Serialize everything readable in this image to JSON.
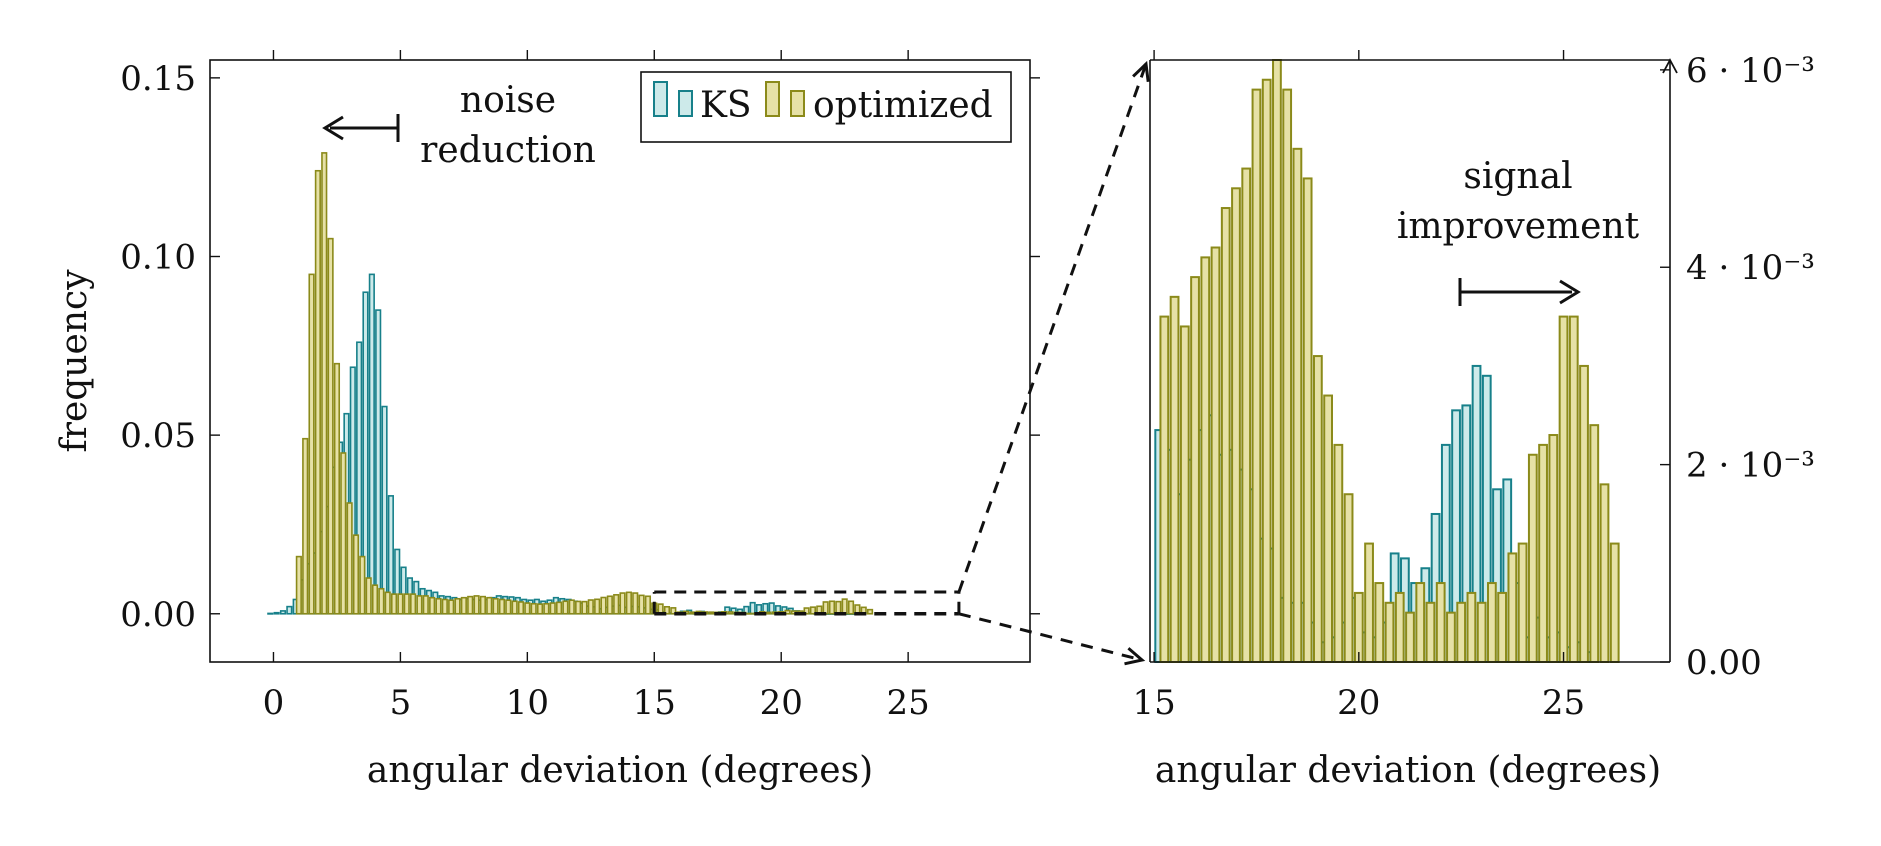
{
  "colors": {
    "ks_fill": "#cdeaea",
    "ks_stroke": "#17808a",
    "opt_fill": "#e6e1a6",
    "opt_stroke": "#8b8a1a",
    "axis": "#111111"
  },
  "legend": [
    {
      "label": "KS",
      "series": "KS"
    },
    {
      "label": "optimized",
      "series": "optimized"
    }
  ],
  "annotations": {
    "noise_line1": "noise",
    "noise_line2": "reduction",
    "signal_line1": "signal",
    "signal_line2": "improvement"
  },
  "chart_data": [
    {
      "type": "bar",
      "panel": "main",
      "xlabel": "angular deviation (degrees)",
      "ylabel": "frequency",
      "xlim": [
        -2.5,
        29.8
      ],
      "ylim": [
        -0.0135,
        0.155
      ],
      "xticks": [
        0,
        5,
        10,
        15,
        20,
        25
      ],
      "xtick_labels": [
        "0",
        "5",
        "10",
        "15",
        "20",
        "25"
      ],
      "yticks": [
        0.0,
        0.05,
        0.1,
        0.15
      ],
      "ytick_labels": [
        "0.00",
        "0.05",
        "0.10",
        "0.15"
      ],
      "legend_position": "top-right",
      "bin_width": 0.25,
      "series": [
        {
          "name": "KS",
          "x_start": -0.25,
          "values": [
            0.0001,
            0.0003,
            0.0008,
            0.002,
            0.004,
            0.0095,
            0.014,
            0.017,
            0.023,
            0.03,
            0.041,
            0.048,
            0.056,
            0.069,
            0.076,
            0.09,
            0.095,
            0.085,
            0.058,
            0.033,
            0.018,
            0.013,
            0.01,
            0.009,
            0.007,
            0.0065,
            0.006,
            0.005,
            0.0048,
            0.0045,
            0.004,
            0.0042,
            0.004,
            0.0038,
            0.004,
            0.0045,
            0.005,
            0.0048,
            0.0047,
            0.0045,
            0.004,
            0.0038,
            0.004,
            0.0035,
            0.0038,
            0.0045,
            0.0042,
            0.004,
            0.0035,
            0.003,
            0.00215,
            0.00195,
            0.0014,
            0.0018,
            0.00215,
            0.00235,
            0.0018,
            0.00205,
            0.00195,
            0.00165,
            0.00125,
            0.00115,
            0.00055,
            0.0002,
            0.00025,
            0.0007,
            0.00095,
            0.0001,
            0.00065,
            0.00035,
            0.0002,
            0.0005,
            0.00185,
            0.00155,
            0.00125,
            0.002,
            0.0031,
            0.0025,
            0.0028,
            0.003,
            0.0022,
            0.0019,
            0.0015,
            0.0008,
            0.0005,
            0.0002,
            0.0001,
            5e-05,
            3e-05,
            2e-05,
            1e-05,
            1e-05,
            1e-05
          ]
        },
        {
          "name": "optimized",
          "x_start": 0.875,
          "values": [
            0.016,
            0.049,
            0.095,
            0.124,
            0.129,
            0.105,
            0.07,
            0.045,
            0.031,
            0.022,
            0.016,
            0.01,
            0.008,
            0.007,
            0.006,
            0.0055,
            0.0055,
            0.0055,
            0.0055,
            0.005,
            0.005,
            0.0045,
            0.0042,
            0.004,
            0.0038,
            0.0042,
            0.0045,
            0.0048,
            0.005,
            0.0048,
            0.0045,
            0.0042,
            0.004,
            0.0038,
            0.0035,
            0.0033,
            0.003,
            0.0028,
            0.0027,
            0.0028,
            0.003,
            0.0032,
            0.0035,
            0.0038,
            0.00345,
            0.0034,
            0.00385,
            0.00405,
            0.00455,
            0.0049,
            0.0053,
            0.0058,
            0.006,
            0.0058,
            0.00515,
            0.0049,
            0.00295,
            0.0027,
            0.00195,
            0.00165,
            0.00045,
            0.00065,
            0.00045,
            0.00065,
            0.0005,
            0.00045,
            0.0004,
            0.00055,
            0.0005,
            0.0004,
            0.00035,
            0.0001,
            0.0001,
            0.00055,
            0.0004,
            0.00045,
            0.00055,
            0.0009,
            0.00075,
            0.00075,
            0.0016,
            0.00185,
            0.0021,
            0.0033,
            0.0035,
            0.0034,
            0.0041,
            0.0035,
            0.00245,
            0.0018,
            0.00115
          ]
        }
      ]
    },
    {
      "type": "bar",
      "panel": "zoom",
      "xlabel": "angular deviation (degrees)",
      "ylabel": "",
      "xlim": [
        14.9,
        27.6
      ],
      "ylim": [
        0,
        0.0061
      ],
      "xticks": [
        15,
        20,
        25
      ],
      "xtick_labels": [
        "15",
        "20",
        "25"
      ],
      "yticks": [
        0,
        0.002,
        0.004,
        0.006
      ],
      "ytick_labels": [
        "0.00",
        "2 · 10⁻³",
        "4 · 10⁻³",
        "6 · 10⁻³"
      ],
      "y_axis_side": "right",
      "zoom_region": {
        "x": [
          15,
          27
        ],
        "y": [
          0,
          0.0061
        ]
      },
      "bin_width": 0.25,
      "series": [
        {
          "name": "KS",
          "x_start": 15.0,
          "values": [
            0.00235,
            0.00215,
            0.0017,
            0.00205,
            0.00235,
            0.0025,
            0.0021,
            0.00215,
            0.00195,
            0.00175,
            0.00125,
            0.00115,
            0.00065,
            0.0006,
            0.0006,
            0.0004,
            0.0002,
            0.00025,
            0.0004,
            0.00065,
            0.0003,
            0.00025,
            0.0004,
            0.0011,
            0.00105,
            0.0008,
            0.00095,
            0.0015,
            0.0022,
            0.00255,
            0.0026,
            0.003,
            0.0029,
            0.00175,
            0.00185,
            0.0008,
            0.00025,
            0.00045,
            0.00025,
            0.0003,
            0.00015,
            0.0002,
            0.0001
          ]
        },
        {
          "name": "optimized",
          "x_start": 15.125,
          "values": [
            0.0035,
            0.0037,
            0.0034,
            0.0039,
            0.0041,
            0.0042,
            0.0046,
            0.0048,
            0.005,
            0.0058,
            0.0059,
            0.0061,
            0.0058,
            0.0052,
            0.0049,
            0.0031,
            0.0027,
            0.0022,
            0.0017,
            0.0007,
            0.0012,
            0.0008,
            0.0006,
            0.0007,
            0.0005,
            0.0008,
            0.0006,
            0.0008,
            0.0005,
            0.0006,
            0.0007,
            0.0006,
            0.0008,
            0.0007,
            0.0011,
            0.0012,
            0.0021,
            0.0022,
            0.0023,
            0.0035,
            0.0035,
            0.003,
            0.0024,
            0.0018,
            0.0012
          ]
        }
      ]
    }
  ]
}
